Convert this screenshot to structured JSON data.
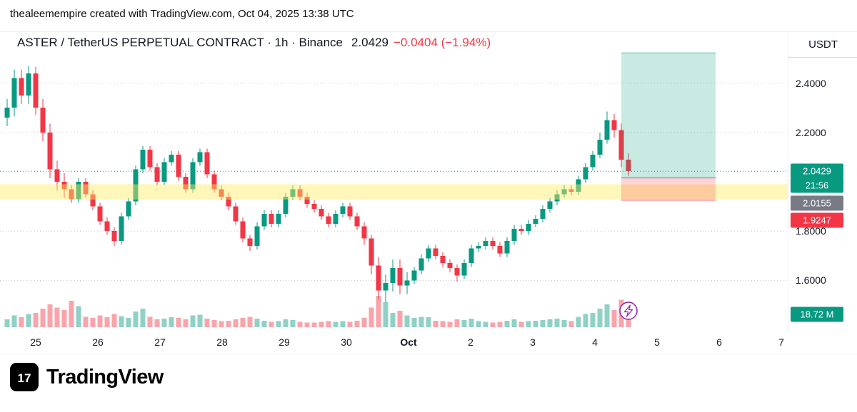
{
  "attribution": "thealeemempire created with TradingView.com, Oct 04, 2025 13:38 UTC",
  "header": {
    "symbol_line": "ASTER / TetherUS PERPETUAL CONTRACT · 1h · Binance",
    "price": "2.0429",
    "change": "−0.0404 (−1.94%)"
  },
  "price_axis": {
    "currency": "USDT",
    "badges": [
      {
        "name": "last-price",
        "label": "2.0429",
        "color": "#089981"
      },
      {
        "name": "bar-countdown",
        "label": "21:56",
        "color": "#089981"
      },
      {
        "name": "entry-price",
        "label": "2.0155",
        "color": "#787b86"
      },
      {
        "name": "stop-price",
        "label": "1.9247",
        "color": "#f23645"
      },
      {
        "name": "volume",
        "label": "18.72 M",
        "color": "#089981"
      }
    ]
  },
  "footer": {
    "logo_text": "TradingView",
    "logo_glyph": "17"
  },
  "colors": {
    "up": "#089981",
    "down": "#f23645",
    "vol_up": "rgba(8,153,129,0.45)",
    "vol_down": "rgba(242,54,69,0.45)",
    "grid": "#c8cbd4",
    "purple": "#8e24aa",
    "band": "rgba(255,235,100,0.45)",
    "pos_profit": "rgba(8,153,129,0.22)",
    "pos_loss": "rgba(242,54,69,0.22)"
  },
  "chart_data": {
    "type": "candlestick",
    "title": "ASTER / TetherUS PERPETUAL CONTRACT 1h Binance",
    "ylim": [
      1.399,
      2.607
    ],
    "volume_unit": "M",
    "price_ticks": [
      {
        "label": "2.4000",
        "price": 2.4
      },
      {
        "label": "2.2000",
        "price": 2.2
      },
      {
        "label": "1.8000",
        "price": 1.8
      },
      {
        "label": "1.6000",
        "price": 1.6
      }
    ],
    "time_ticks": [
      {
        "label": "25"
      },
      {
        "label": "26"
      },
      {
        "label": "27"
      },
      {
        "label": "28"
      },
      {
        "label": "29"
      },
      {
        "label": "30"
      },
      {
        "label": "Oct",
        "bold": true
      },
      {
        "label": "2"
      },
      {
        "label": "3"
      },
      {
        "label": "4"
      },
      {
        "label": "5"
      },
      {
        "label": "6"
      },
      {
        "label": "7"
      }
    ],
    "candles": [
      [
        2.26,
        2.335,
        2.225,
        2.3,
        12
      ],
      [
        2.3,
        2.455,
        2.265,
        2.42,
        18
      ],
      [
        2.42,
        2.455,
        2.315,
        2.35,
        15
      ],
      [
        2.35,
        2.47,
        2.315,
        2.44,
        20
      ],
      [
        2.44,
        2.465,
        2.27,
        2.3,
        22
      ],
      [
        2.3,
        2.335,
        2.165,
        2.2,
        28
      ],
      [
        2.2,
        2.235,
        2.015,
        2.05,
        35
      ],
      [
        2.05,
        2.085,
        1.965,
        2.0,
        30
      ],
      [
        2.0,
        2.035,
        1.935,
        1.97,
        26
      ],
      [
        1.97,
        1.985,
        1.915,
        1.93,
        40
      ],
      [
        1.93,
        2.015,
        1.915,
        2.0,
        32
      ],
      [
        2.0,
        2.015,
        1.935,
        1.95,
        16
      ],
      [
        1.95,
        1.965,
        1.885,
        1.9,
        14
      ],
      [
        1.9,
        1.915,
        1.825,
        1.84,
        18
      ],
      [
        1.84,
        1.855,
        1.785,
        1.8,
        15
      ],
      [
        1.8,
        1.815,
        1.74,
        1.76,
        20
      ],
      [
        1.76,
        1.875,
        1.745,
        1.86,
        17
      ],
      [
        1.86,
        1.935,
        1.845,
        1.92,
        14
      ],
      [
        1.92,
        2.065,
        1.905,
        2.05,
        24
      ],
      [
        2.05,
        2.145,
        2.035,
        2.13,
        28
      ],
      [
        2.13,
        2.145,
        2.045,
        2.06,
        16
      ],
      [
        2.06,
        2.075,
        1.985,
        2.0,
        12
      ],
      [
        2.0,
        2.095,
        1.985,
        2.08,
        13
      ],
      [
        2.08,
        2.125,
        2.065,
        2.11,
        15
      ],
      [
        2.11,
        2.125,
        2.005,
        2.02,
        14
      ],
      [
        2.02,
        2.035,
        1.955,
        1.97,
        12
      ],
      [
        1.97,
        2.095,
        1.955,
        2.08,
        18
      ],
      [
        2.08,
        2.135,
        2.065,
        2.12,
        19
      ],
      [
        2.12,
        2.135,
        2.015,
        2.03,
        13
      ],
      [
        2.03,
        2.045,
        1.955,
        1.97,
        11
      ],
      [
        1.97,
        1.985,
        1.925,
        1.94,
        9
      ],
      [
        1.94,
        1.955,
        1.885,
        1.9,
        10
      ],
      [
        1.9,
        1.915,
        1.825,
        1.84,
        12
      ],
      [
        1.84,
        1.855,
        1.755,
        1.77,
        14
      ],
      [
        1.77,
        1.785,
        1.72,
        1.74,
        16
      ],
      [
        1.74,
        1.835,
        1.725,
        1.82,
        13
      ],
      [
        1.82,
        1.885,
        1.805,
        1.87,
        10
      ],
      [
        1.87,
        1.885,
        1.815,
        1.83,
        8
      ],
      [
        1.83,
        1.885,
        1.815,
        1.87,
        9
      ],
      [
        1.87,
        1.955,
        1.855,
        1.94,
        12
      ],
      [
        1.94,
        1.985,
        1.925,
        1.97,
        11
      ],
      [
        1.97,
        1.985,
        1.925,
        1.94,
        8
      ],
      [
        1.94,
        1.955,
        1.895,
        1.91,
        7
      ],
      [
        1.91,
        1.925,
        1.875,
        1.89,
        7
      ],
      [
        1.89,
        1.905,
        1.845,
        1.86,
        8
      ],
      [
        1.86,
        1.875,
        1.815,
        1.83,
        9
      ],
      [
        1.83,
        1.885,
        1.815,
        1.87,
        8
      ],
      [
        1.87,
        1.915,
        1.855,
        1.9,
        9
      ],
      [
        1.9,
        1.915,
        1.845,
        1.86,
        8
      ],
      [
        1.86,
        1.875,
        1.805,
        1.82,
        10
      ],
      [
        1.82,
        1.835,
        1.745,
        1.77,
        14
      ],
      [
        1.77,
        1.785,
        1.625,
        1.66,
        30
      ],
      [
        1.66,
        1.695,
        1.525,
        1.56,
        48
      ],
      [
        1.56,
        1.625,
        1.51,
        1.59,
        38
      ],
      [
        1.59,
        1.685,
        1.555,
        1.65,
        22
      ],
      [
        1.65,
        1.685,
        1.545,
        1.58,
        25
      ],
      [
        1.58,
        1.635,
        1.545,
        1.6,
        18
      ],
      [
        1.6,
        1.655,
        1.585,
        1.64,
        14
      ],
      [
        1.64,
        1.705,
        1.625,
        1.69,
        16
      ],
      [
        1.69,
        1.745,
        1.675,
        1.73,
        15
      ],
      [
        1.73,
        1.745,
        1.685,
        1.7,
        10
      ],
      [
        1.7,
        1.715,
        1.655,
        1.67,
        9
      ],
      [
        1.67,
        1.685,
        1.635,
        1.65,
        8
      ],
      [
        1.65,
        1.665,
        1.595,
        1.62,
        12
      ],
      [
        1.62,
        1.685,
        1.605,
        1.67,
        11
      ],
      [
        1.67,
        1.745,
        1.655,
        1.73,
        13
      ],
      [
        1.73,
        1.755,
        1.715,
        1.74,
        9
      ],
      [
        1.74,
        1.775,
        1.725,
        1.76,
        8
      ],
      [
        1.76,
        1.775,
        1.725,
        1.74,
        7
      ],
      [
        1.74,
        1.755,
        1.695,
        1.71,
        8
      ],
      [
        1.71,
        1.775,
        1.695,
        1.76,
        10
      ],
      [
        1.76,
        1.825,
        1.745,
        1.81,
        12
      ],
      [
        1.81,
        1.825,
        1.785,
        1.8,
        8
      ],
      [
        1.8,
        1.845,
        1.785,
        1.83,
        9
      ],
      [
        1.83,
        1.865,
        1.815,
        1.85,
        10
      ],
      [
        1.85,
        1.905,
        1.835,
        1.89,
        11
      ],
      [
        1.89,
        1.935,
        1.875,
        1.92,
        12
      ],
      [
        1.92,
        1.965,
        1.905,
        1.95,
        13
      ],
      [
        1.95,
        1.985,
        1.935,
        1.97,
        11
      ],
      [
        1.97,
        1.985,
        1.945,
        1.96,
        9
      ],
      [
        1.96,
        2.025,
        1.945,
        2.01,
        16
      ],
      [
        2.01,
        2.075,
        1.995,
        2.06,
        20
      ],
      [
        2.06,
        2.125,
        2.045,
        2.11,
        22
      ],
      [
        2.11,
        2.2,
        2.095,
        2.17,
        28
      ],
      [
        2.17,
        2.285,
        2.155,
        2.25,
        35
      ],
      [
        2.25,
        2.275,
        2.18,
        2.21,
        26
      ],
      [
        2.21,
        2.235,
        2.06,
        2.09,
        42
      ],
      [
        2.09,
        2.115,
        2.025,
        2.0429,
        18.72
      ]
    ],
    "overlays": {
      "last_price_line": 2.0429,
      "yellow_band": {
        "from": 1.928,
        "to": 1.99
      },
      "long_position": {
        "entry": 2.0155,
        "stop": 1.9247,
        "target": 2.523
      }
    }
  }
}
